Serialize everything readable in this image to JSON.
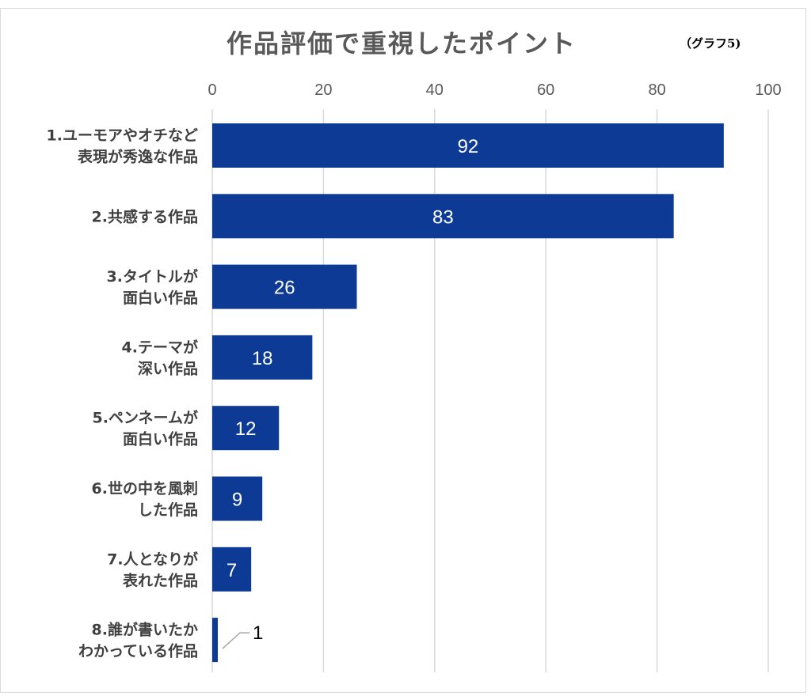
{
  "chart_data": {
    "type": "bar",
    "orientation": "horizontal",
    "title": "作品評価で重視したポイント",
    "note": "（グラフ5)",
    "categories": [
      [
        "1.ユーモアやオチなど",
        "表現が秀逸な作品"
      ],
      [
        "2.共感する作品"
      ],
      [
        "3.タイトルが",
        "面白い作品"
      ],
      [
        "4.テーマが",
        "深い作品"
      ],
      [
        "5.ペンネームが",
        "面白い作品"
      ],
      [
        "6.世の中を風刺",
        "した作品"
      ],
      [
        "7.人となりが",
        "表れた作品"
      ],
      [
        "8.誰が書いたか",
        "わかっている作品"
      ]
    ],
    "values": [
      92,
      83,
      26,
      18,
      12,
      9,
      7,
      1
    ],
    "data_labels": [
      "92",
      "83",
      "26",
      "18",
      "12",
      "9",
      "7",
      "1"
    ],
    "xlim": [
      0,
      100
    ],
    "xticks": [
      0,
      20,
      40,
      60,
      80,
      100
    ],
    "x_axis_position": "top",
    "grid": true,
    "legend": "none",
    "bar_color": "#0d3a94",
    "gridline_color": "#d9d9d9",
    "label_color_inside": "#ffffff",
    "label_color_outside": "#000000"
  }
}
